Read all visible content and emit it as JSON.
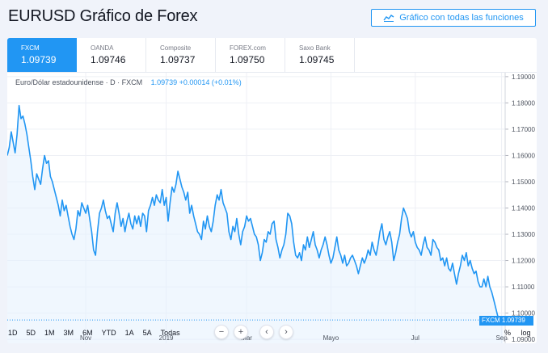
{
  "page": {
    "title": "EURUSD Gráfico de Forex"
  },
  "full_chart_button": {
    "label": "Gráfico con todas las funciones",
    "icon": "line-chart-icon"
  },
  "colors": {
    "accent": "#2196f3",
    "line": "#2196f3",
    "area": "#e3f1fd",
    "grid": "#eef0f5",
    "text": "#131722",
    "muted": "#787b86"
  },
  "tabs": [
    {
      "name": "FXCM",
      "price": "1.09739",
      "active": true
    },
    {
      "name": "OANDA",
      "price": "1.09746",
      "active": false
    },
    {
      "name": "Composite",
      "price": "1.09737",
      "active": false
    },
    {
      "name": "FOREX.com",
      "price": "1.09750",
      "active": false
    },
    {
      "name": "Saxo Bank",
      "price": "1.09745",
      "active": false
    }
  ],
  "legend": {
    "label": "Euro/Dólar estadounidense · D · FXCM",
    "values": "1.09739  +0.00014 (+0.01%)"
  },
  "price_badge": {
    "symbol": "FXCM",
    "price": "1.09739"
  },
  "nav_controls": {
    "zoom_out": "−",
    "zoom_in": "+",
    "scroll_left": "‹",
    "scroll_right": "›"
  },
  "timeframes": [
    "1D",
    "5D",
    "1M",
    "3M",
    "6M",
    "YTD",
    "1A",
    "5A",
    "Todas"
  ],
  "scale_options": {
    "percent": "%",
    "log": "log"
  },
  "chart_data": {
    "type": "area",
    "title": "",
    "xlabel": "",
    "ylabel": "",
    "ylim": [
      1.0885,
      1.1915
    ],
    "grid": true,
    "y_ticks": [
      "1.19000",
      "1.18000",
      "1.17000",
      "1.16000",
      "1.15000",
      "1.14000",
      "1.13000",
      "1.12000",
      "1.11000",
      "1.10000",
      "1.09000"
    ],
    "x_ticks": [
      {
        "label": "Nov",
        "index": 40
      },
      {
        "label": "2019",
        "index": 81
      },
      {
        "label": "Mar",
        "index": 122
      },
      {
        "label": "Mayo",
        "index": 165
      },
      {
        "label": "Jul",
        "index": 208
      },
      {
        "label": "Sep",
        "index": 252
      }
    ],
    "last_value": 1.09739,
    "series": [
      {
        "values": [
          1.16,
          1.163,
          1.169,
          1.165,
          1.161,
          1.168,
          1.179,
          1.174,
          1.175,
          1.172,
          1.168,
          1.163,
          1.158,
          1.152,
          1.147,
          1.153,
          1.151,
          1.149,
          1.155,
          1.16,
          1.157,
          1.158,
          1.152,
          1.15,
          1.147,
          1.144,
          1.141,
          1.137,
          1.143,
          1.139,
          1.141,
          1.137,
          1.133,
          1.13,
          1.128,
          1.132,
          1.139,
          1.137,
          1.142,
          1.14,
          1.138,
          1.141,
          1.136,
          1.131,
          1.124,
          1.122,
          1.131,
          1.138,
          1.14,
          1.143,
          1.139,
          1.136,
          1.137,
          1.134,
          1.131,
          1.138,
          1.142,
          1.138,
          1.133,
          1.136,
          1.131,
          1.135,
          1.138,
          1.134,
          1.132,
          1.137,
          1.134,
          1.137,
          1.133,
          1.138,
          1.137,
          1.131,
          1.139,
          1.141,
          1.144,
          1.141,
          1.145,
          1.143,
          1.142,
          1.147,
          1.141,
          1.144,
          1.135,
          1.142,
          1.148,
          1.146,
          1.149,
          1.154,
          1.151,
          1.148,
          1.146,
          1.143,
          1.146,
          1.138,
          1.141,
          1.137,
          1.134,
          1.131,
          1.13,
          1.128,
          1.135,
          1.132,
          1.137,
          1.133,
          1.131,
          1.135,
          1.141,
          1.145,
          1.143,
          1.147,
          1.142,
          1.14,
          1.138,
          1.131,
          1.128,
          1.133,
          1.131,
          1.136,
          1.13,
          1.126,
          1.131,
          1.133,
          1.137,
          1.135,
          1.136,
          1.133,
          1.13,
          1.129,
          1.126,
          1.12,
          1.123,
          1.128,
          1.127,
          1.131,
          1.13,
          1.134,
          1.135,
          1.128,
          1.125,
          1.121,
          1.124,
          1.126,
          1.13,
          1.138,
          1.137,
          1.134,
          1.127,
          1.122,
          1.121,
          1.123,
          1.12,
          1.126,
          1.124,
          1.129,
          1.125,
          1.128,
          1.131,
          1.126,
          1.124,
          1.121,
          1.124,
          1.126,
          1.129,
          1.126,
          1.122,
          1.119,
          1.121,
          1.125,
          1.129,
          1.124,
          1.122,
          1.119,
          1.122,
          1.118,
          1.119,
          1.121,
          1.122,
          1.12,
          1.118,
          1.115,
          1.118,
          1.121,
          1.119,
          1.121,
          1.124,
          1.122,
          1.127,
          1.124,
          1.122,
          1.126,
          1.131,
          1.134,
          1.128,
          1.126,
          1.129,
          1.131,
          1.127,
          1.12,
          1.123,
          1.127,
          1.13,
          1.136,
          1.14,
          1.138,
          1.136,
          1.131,
          1.129,
          1.131,
          1.127,
          1.125,
          1.124,
          1.122,
          1.126,
          1.129,
          1.125,
          1.124,
          1.122,
          1.128,
          1.127,
          1.125,
          1.124,
          1.12,
          1.121,
          1.118,
          1.121,
          1.117,
          1.116,
          1.119,
          1.115,
          1.111,
          1.115,
          1.118,
          1.122,
          1.12,
          1.123,
          1.118,
          1.12,
          1.117,
          1.115,
          1.116,
          1.112,
          1.11,
          1.11,
          1.113,
          1.11,
          1.114,
          1.11,
          1.108,
          1.105,
          1.102,
          1.099,
          1.098,
          1.097,
          1.09739
        ]
      }
    ]
  }
}
